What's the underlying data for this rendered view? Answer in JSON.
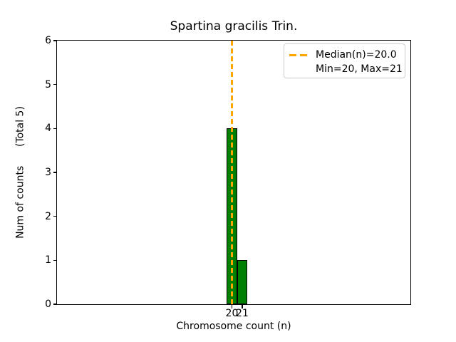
{
  "figure": {
    "title": "Spartina gracilis Trin.",
    "xlabel": "Chromosome count (n)",
    "ylabel": "Num of counts      (Total 5)"
  },
  "legend": {
    "median_label": "Median(n)=20.0",
    "minmax_label": "Min=20, Max=21"
  },
  "chart_data": {
    "type": "bar",
    "title": "Spartina gracilis Trin.",
    "xlabel": "Chromosome count (n)",
    "ylabel": "Num of counts      (Total 5)",
    "categories": [
      20,
      21
    ],
    "values": [
      4,
      1
    ],
    "bar_width": 1,
    "total_counts": 5,
    "median_n": 20.0,
    "min_n": 20,
    "max_n": 21,
    "xlim": [
      3.07,
      37.28
    ],
    "ylim": [
      0,
      6
    ],
    "yticks": [
      0,
      1,
      2,
      3,
      4,
      5,
      6
    ],
    "xticks": [
      20,
      21
    ],
    "grid": false,
    "legend_position": "upper right",
    "legend_entries": [
      "Median(n)=20.0",
      "Min=20, Max=21"
    ],
    "colors": {
      "bar_fill": "#008000",
      "bar_edge": "#000000",
      "median_line": "#FFA500",
      "background": "#FFFFFF",
      "axes": "#000000",
      "legend_border": "#CCCCCC",
      "text": "#000000"
    }
  }
}
